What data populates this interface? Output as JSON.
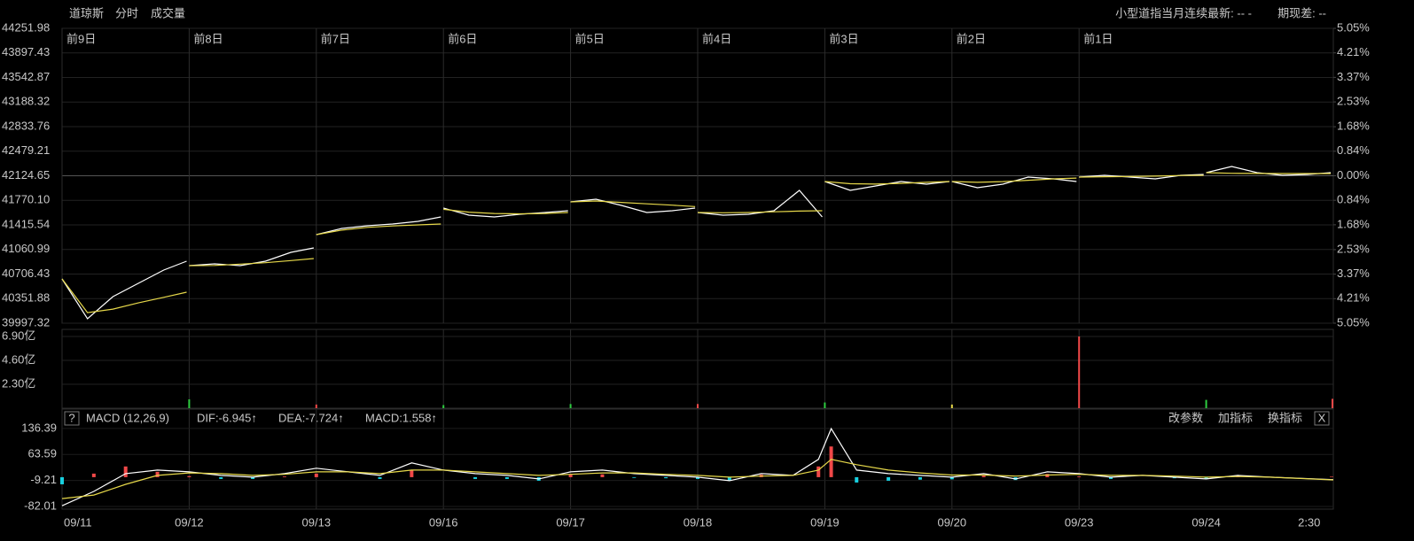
{
  "header": {
    "title": "道琼斯",
    "tabs": [
      "分时",
      "成交量"
    ],
    "right_info": "小型道指当月连续最新: -- -",
    "spread": "期现差: --"
  },
  "indicator_bar": {
    "help": "?",
    "name": "MACD (12,26,9)",
    "dif": "DIF:-6.945↑",
    "dea": "DEA:-7.724↑",
    "macd": "MACD:1.558↑",
    "buttons": [
      "改参数",
      "加指标",
      "换指标"
    ],
    "close": "X"
  },
  "chart_data": [
    {
      "type": "line",
      "xlim": [
        0,
        10
      ],
      "ylim": [
        39997.32,
        44251.98
      ],
      "y2lim": [
        -5.05,
        5.05
      ],
      "yticks": [
        44251.98,
        43897.43,
        43542.87,
        43188.32,
        42833.76,
        42479.21,
        42124.65,
        {
          "value": 41770.1,
          "label": "41770.10"
        },
        41415.54,
        41060.99,
        40706.43,
        40351.88,
        39997.32
      ],
      "y2ticks": [
        {
          "value": 5.05,
          "label": "5.05%"
        },
        {
          "value": 4.21,
          "label": "4.21%"
        },
        {
          "value": 3.37,
          "label": "3.37%"
        },
        {
          "value": 2.53,
          "label": "2.53%"
        },
        {
          "value": 1.68,
          "label": "1.68%"
        },
        {
          "value": 0.84,
          "label": "0.84%"
        },
        {
          "value": 0,
          "label": "0.00%"
        },
        {
          "value": -0.84,
          "label": "0.84%"
        },
        {
          "value": -1.68,
          "label": "1.68%"
        },
        {
          "value": -2.53,
          "label": "2.53%"
        },
        {
          "value": -3.37,
          "label": "3.37%"
        },
        {
          "value": -4.21,
          "label": "4.21%"
        },
        {
          "value": -5.05,
          "label": "5.05%"
        }
      ],
      "xticks": [
        {
          "value": 0,
          "label": "前9日"
        },
        {
          "value": 1,
          "label": "前8日"
        },
        {
          "value": 2,
          "label": "前7日"
        },
        {
          "value": 3,
          "label": "前6日"
        },
        {
          "value": 4,
          "label": "前5日"
        },
        {
          "value": 5,
          "label": "前4日"
        },
        {
          "value": 6,
          "label": "前3日"
        },
        {
          "value": 7,
          "label": "前2日"
        },
        {
          "value": 8,
          "label": "前1日"
        }
      ],
      "grid": true,
      "x": [
        0,
        0.2,
        0.4,
        0.6,
        0.8,
        0.98,
        0.99,
        1,
        1.2,
        1.4,
        1.6,
        1.8,
        1.98,
        1.99,
        2,
        2.2,
        2.4,
        2.6,
        2.8,
        2.98,
        2.99,
        3,
        3.2,
        3.4,
        3.6,
        3.8,
        3.98,
        3.99,
        4,
        4.2,
        4.4,
        4.6,
        4.8,
        4.98,
        4.99,
        5,
        5.2,
        5.4,
        5.6,
        5.8,
        5.98,
        5.99,
        6,
        6.2,
        6.4,
        6.6,
        6.8,
        6.98,
        6.99,
        7,
        7.2,
        7.4,
        7.6,
        7.8,
        7.98,
        7.99,
        8,
        8.2,
        8.4,
        8.6,
        8.8,
        8.98,
        8.99,
        9,
        9.2,
        9.4,
        9.6,
        9.8,
        9.98
      ],
      "series": [
        {
          "color": "#ffffff",
          "values": [
            40636,
            40061,
            40380,
            40572,
            40764,
            40892,
            null,
            40828,
            40853,
            40828,
            40892,
            41019,
            41083,
            null,
            41275,
            41365,
            41403,
            41428,
            41467,
            41531,
            null,
            41658,
            41556,
            41531,
            41569,
            41594,
            41620,
            null,
            41748,
            41786,
            41697,
            41594,
            41620,
            41658,
            null,
            41594,
            41556,
            41569,
            41620,
            41914,
            41531,
            null,
            42041,
            41914,
            41978,
            42041,
            42003,
            42041,
            null,
            42041,
            41952,
            42003,
            42105,
            42080,
            42041,
            null,
            42105,
            42131,
            42105,
            42080,
            42131,
            42144,
            null,
            42169,
            42259,
            42169,
            42131,
            42144,
            42169
          ]
        },
        {
          "color": "#e6d84a",
          "values": [
            40636,
            40150,
            40200,
            40290,
            40370,
            40444,
            null,
            40828,
            40830,
            40850,
            40870,
            40900,
            40930,
            null,
            41275,
            41340,
            41380,
            41400,
            41415,
            41428,
            null,
            41640,
            41600,
            41580,
            41575,
            41580,
            41594,
            null,
            41748,
            41760,
            41740,
            41720,
            41700,
            41680,
            null,
            41594,
            41590,
            41595,
            41605,
            41615,
            41620,
            null,
            42041,
            42010,
            42005,
            42015,
            42030,
            42041,
            null,
            42041,
            42030,
            42040,
            42060,
            42080,
            42092,
            null,
            42105,
            42110,
            42115,
            42120,
            42128,
            42131,
            null,
            42169,
            42160,
            42158,
            42156,
            42156,
            42156
          ]
        }
      ]
    },
    {
      "type": "bar",
      "xlim": [
        0,
        10
      ],
      "ylim": [
        0,
        6.9
      ],
      "yticks": [
        {
          "value": 6.9,
          "label": "6.90亿"
        },
        {
          "value": 4.6,
          "label": "4.60亿"
        },
        {
          "value": 2.3,
          "label": "2.30亿"
        }
      ],
      "x": [
        1,
        2,
        3,
        4,
        5,
        6,
        7,
        8,
        9,
        10
      ],
      "values": [
        0.85,
        0.35,
        0.3,
        0.4,
        0.4,
        0.55,
        0.35,
        6.9,
        0.8,
        0.9
      ],
      "colors": [
        "#2ecc40",
        "#f04848",
        "#2ecc40",
        "#2ecc40",
        "#f04848",
        "#2ecc40",
        "#e6d84a",
        "#f04848",
        "#2ecc40",
        "#f04848"
      ]
    },
    {
      "type": "macd",
      "xlim": [
        0,
        10
      ],
      "ylim": [
        -89.5,
        161
      ],
      "yticks": [
        136.39,
        63.59,
        -9.21,
        -82.01
      ],
      "xticks": [
        {
          "value": 0,
          "label": "09/11"
        },
        {
          "value": 1,
          "label": "09/12"
        },
        {
          "value": 2,
          "label": "09/13"
        },
        {
          "value": 3,
          "label": "09/16"
        },
        {
          "value": 4,
          "label": "09/17"
        },
        {
          "value": 5,
          "label": "09/18"
        },
        {
          "value": 6,
          "label": "09/19"
        },
        {
          "value": 7,
          "label": "09/20"
        },
        {
          "value": 8,
          "label": "09/23"
        },
        {
          "value": 9,
          "label": "09/24"
        },
        {
          "value": 9.81,
          "label": "2:30"
        }
      ],
      "up_color": "#f04848",
      "down_color": "#18d0e0",
      "x": [
        0,
        0.25,
        0.5,
        0.75,
        1,
        1.25,
        1.5,
        1.75,
        2,
        2.25,
        2.5,
        2.75,
        3,
        3.25,
        3.5,
        3.75,
        4,
        4.25,
        4.5,
        4.75,
        5,
        5.25,
        5.5,
        5.75,
        5.95,
        6.05,
        6.25,
        6.5,
        6.75,
        7,
        7.25,
        7.5,
        7.75,
        8,
        8.25,
        8.5,
        8.75,
        9,
        9.25,
        9.5,
        10
      ],
      "histogram": [
        -20,
        10,
        30,
        15,
        3,
        -5,
        -5,
        2,
        10,
        0,
        -5,
        20,
        0,
        -5,
        -5,
        -10,
        7,
        8,
        -2,
        -3,
        -5,
        -10,
        7,
        0,
        30,
        86,
        -15,
        -10,
        -7,
        -6,
        4,
        -8,
        9,
        2,
        -5,
        0,
        -3,
        -5,
        3,
        0,
        1.558
      ],
      "series": [
        {
          "color": "#ffffff",
          "values": [
            -80,
            -40,
            10,
            20,
            15,
            5,
            0,
            10,
            25,
            15,
            5,
            40,
            20,
            10,
            5,
            -5,
            15,
            20,
            10,
            5,
            0,
            -10,
            10,
            5,
            50,
            136,
            20,
            10,
            5,
            0,
            10,
            -5,
            15,
            10,
            0,
            5,
            0,
            -5,
            5,
            0,
            -6.945
          ]
        },
        {
          "color": "#e6d84a",
          "values": [
            -60,
            -50,
            -20,
            5,
            12,
            10,
            5,
            8,
            15,
            15,
            10,
            20,
            20,
            15,
            10,
            5,
            8,
            12,
            12,
            8,
            5,
            0,
            3,
            5,
            20,
            50,
            35,
            20,
            12,
            6,
            6,
            3,
            6,
            8,
            5,
            5,
            3,
            0,
            2,
            0,
            -7.724
          ]
        }
      ]
    }
  ]
}
